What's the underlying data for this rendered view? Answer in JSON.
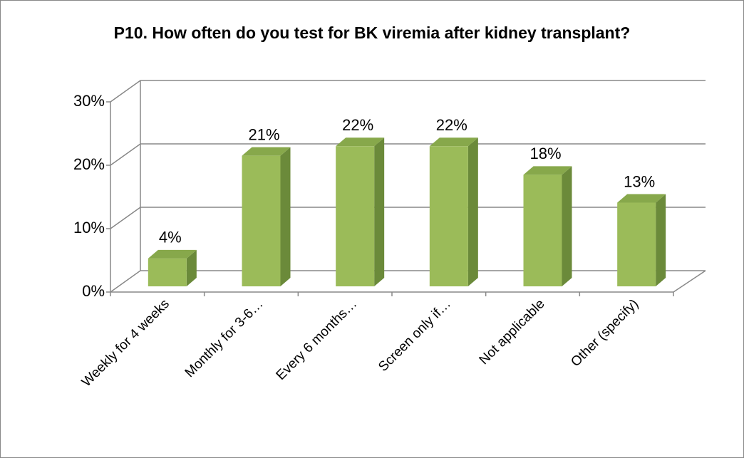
{
  "chart_data": {
    "type": "bar3d",
    "title": "P10. How often do you test for BK viremia after kidney transplant?",
    "categories": [
      "Weekly for 4 weeks",
      "Monthly for 3-6…",
      "Every 6 months…",
      "Screen only if…",
      "Not applicable",
      "Other (specify)"
    ],
    "values": [
      4.4,
      20.6,
      22.1,
      22.1,
      17.6,
      13.2
    ],
    "value_labels": [
      "4%",
      "21%",
      "22%",
      "22%",
      "18%",
      "13%"
    ],
    "color": "#9bbb59",
    "ylim": [
      0,
      30
    ],
    "yticks": [
      {
        "value": 0,
        "label": "0%"
      },
      {
        "value": 10,
        "label": "10%"
      },
      {
        "value": 20,
        "label": "20%"
      },
      {
        "value": 30,
        "label": "30%"
      }
    ],
    "grid": true
  }
}
